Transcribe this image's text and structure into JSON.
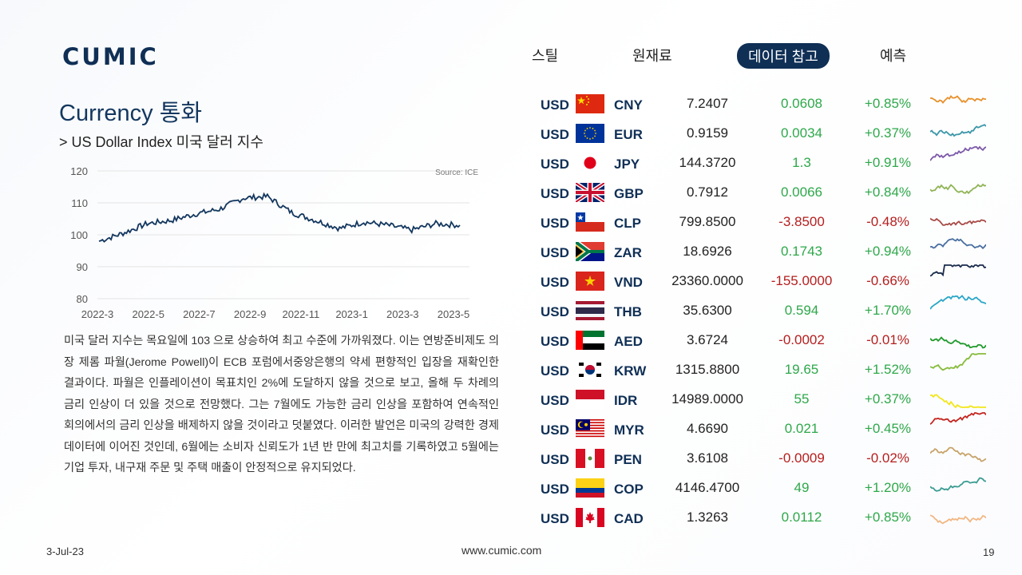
{
  "brand": {
    "logo": "CUMIC"
  },
  "nav": [
    {
      "label": "스틸",
      "active": false
    },
    {
      "label": "원재료",
      "active": false
    },
    {
      "label": "데이터 참고",
      "active": true
    },
    {
      "label": "예측",
      "active": false
    }
  ],
  "page": {
    "title": "Currency 통화",
    "subtitle": "> US Dollar Index 미국 달러 지수"
  },
  "chart_data": {
    "type": "line",
    "title": "",
    "source": "Source: ICE",
    "xlabel": "",
    "ylabel": "",
    "ylim": [
      80,
      120
    ],
    "y_ticks": [
      "120",
      "110",
      "100",
      "90",
      "80"
    ],
    "x_ticks": [
      "2022-3",
      "2022-5",
      "2022-7",
      "2022-9",
      "2022-11",
      "2023-1",
      "2023-3",
      "2023-5"
    ],
    "x": [
      "2022-3",
      "2022-4",
      "2022-5",
      "2022-6",
      "2022-7",
      "2022-8",
      "2022-9",
      "2022-10",
      "2022-11",
      "2022-12",
      "2023-1",
      "2023-2",
      "2023-3",
      "2023-4",
      "2023-5",
      "2023-6"
    ],
    "series": [
      {
        "values": [
          98,
          100.5,
          103.5,
          104.5,
          106.5,
          108,
          111.5,
          112,
          107,
          104.5,
          102,
          104,
          103,
          101.5,
          103.5,
          103
        ]
      }
    ]
  },
  "body_text": "미국 달러 지수는 목요일에 103 으로 상승하여 최고 수준에 가까워졌다. 이는 연방준비제도 의장 제롬 파월(Jerome Powell)이 ECB 포럼에서중앙은행의 약세 편향적인 입장을 재확인한 결과이다. 파월은 인플레이션이 목표치인 2%에 도달하지 않을 것으로 보고, 올해 두 차례의 금리 인상이 더 있을 것으로 전망했다. 그는 7월에도 가능한 금리 인상을 포함하여 연속적인 회의에서의 금리 인상을 배제하지 않을 것이라고 덧붙였다. 이러한 발언은 미국의 강력한 경제 데이터에 이어진 것인데, 6월에는 소비자 신뢰도가 1년 반 만에 최고치를 기록하였고 5월에는 기업 투자, 내구재 주문 및 주택 매출이 안정적으로 유지되었다.",
  "rates": [
    {
      "base": "USD",
      "code": "CNY",
      "flag": "china-flag-icon",
      "rate": "7.2407",
      "change": "0.0608",
      "pct": "+0.85%",
      "dir": "up",
      "spark_color": "#e8912c"
    },
    {
      "base": "USD",
      "code": "EUR",
      "flag": "eu-flag-icon",
      "rate": "0.9159",
      "change": "0.0034",
      "pct": "+0.37%",
      "dir": "up",
      "spark_color": "#3a97a8"
    },
    {
      "base": "USD",
      "code": "JPY",
      "flag": "japan-flag-icon",
      "rate": "144.3720",
      "change": "1.3",
      "pct": "+0.91%",
      "dir": "up",
      "spark_color": "#7b58a8"
    },
    {
      "base": "USD",
      "code": "GBP",
      "flag": "uk-flag-icon",
      "rate": "0.7912",
      "change": "0.0066",
      "pct": "+0.84%",
      "dir": "up",
      "spark_color": "#8fb454"
    },
    {
      "base": "USD",
      "code": "CLP",
      "flag": "chile-flag-icon",
      "rate": "799.8500",
      "change": "-3.8500",
      "pct": "-0.48%",
      "dir": "down",
      "spark_color": "#a84a45"
    },
    {
      "base": "USD",
      "code": "ZAR",
      "flag": "south-africa-flag-icon",
      "rate": "18.6926",
      "change": "0.1743",
      "pct": "+0.94%",
      "dir": "up",
      "spark_color": "#4a6fa0"
    },
    {
      "base": "USD",
      "code": "VND",
      "flag": "vietnam-flag-icon",
      "rate": "23360.0000",
      "change": "-155.0000",
      "pct": "-0.66%",
      "dir": "down",
      "spark_color": "#1b2b4b"
    },
    {
      "base": "USD",
      "code": "THB",
      "flag": "thailand-flag-icon",
      "rate": "35.6300",
      "change": "0.594",
      "pct": "+1.70%",
      "dir": "up",
      "spark_color": "#2aa6c8"
    },
    {
      "base": "USD",
      "code": "AED",
      "flag": "uae-flag-icon",
      "rate": "3.6724",
      "change": "-0.0002",
      "pct": "-0.01%",
      "dir": "down",
      "spark_color": "#1f9a2c"
    },
    {
      "base": "USD",
      "code": "KRW",
      "flag": "korea-flag-icon",
      "rate": "1315.8800",
      "change": "19.65",
      "pct": "+1.52%",
      "dir": "up",
      "spark_color": "#86bc3a"
    },
    {
      "base": "USD",
      "code": "IDR",
      "flag": "indonesia-flag-icon",
      "rate": "14989.0000",
      "change": "55",
      "pct": "+0.37%",
      "dir": "up",
      "spark_color": "#f2e61a"
    },
    {
      "base": "USD",
      "code": "MYR",
      "flag": "malaysia-flag-icon",
      "rate": "4.6690",
      "change": "0.021",
      "pct": "+0.45%",
      "dir": "up",
      "spark_color": "#c4241e"
    },
    {
      "base": "USD",
      "code": "PEN",
      "flag": "peru-flag-icon",
      "rate": "3.6108",
      "change": "-0.0009",
      "pct": "-0.02%",
      "dir": "down",
      "spark_color": "#c8a36a"
    },
    {
      "base": "USD",
      "code": "COP",
      "flag": "colombia-flag-icon",
      "rate": "4146.4700",
      "change": "49",
      "pct": "+1.20%",
      "dir": "up",
      "spark_color": "#3c9c92"
    },
    {
      "base": "USD",
      "code": "CAD",
      "flag": "canada-flag-icon",
      "rate": "1.3263",
      "change": "0.0112",
      "pct": "+0.85%",
      "dir": "up",
      "spark_color": "#f2b682"
    }
  ],
  "footer": {
    "date": "3-Jul-23",
    "url": "www.cumic.com",
    "page": "19"
  }
}
